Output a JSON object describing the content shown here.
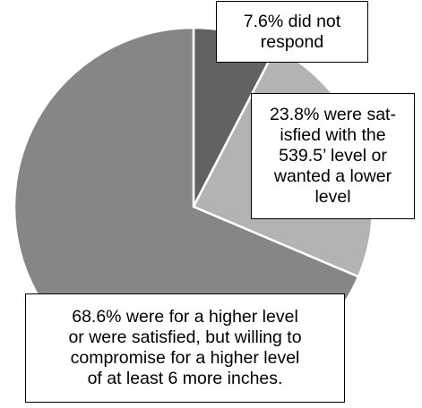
{
  "chart_data": {
    "type": "pie",
    "title": "",
    "slices": [
      {
        "value": 7.6,
        "label": "7.6% did not\nrespond",
        "color": "#626262"
      },
      {
        "value": 23.8,
        "label": "23.8% were sat-\nisfied with the\n539.5’ level or\nwanted a lower\nlevel",
        "color": "#b3b3b3"
      },
      {
        "value": 68.6,
        "label": "68.6% were for a higher level\nor were satisfied, but willing to\ncompromise for a higher level\nof at least 6 more inches.",
        "color": "#868686"
      }
    ]
  }
}
